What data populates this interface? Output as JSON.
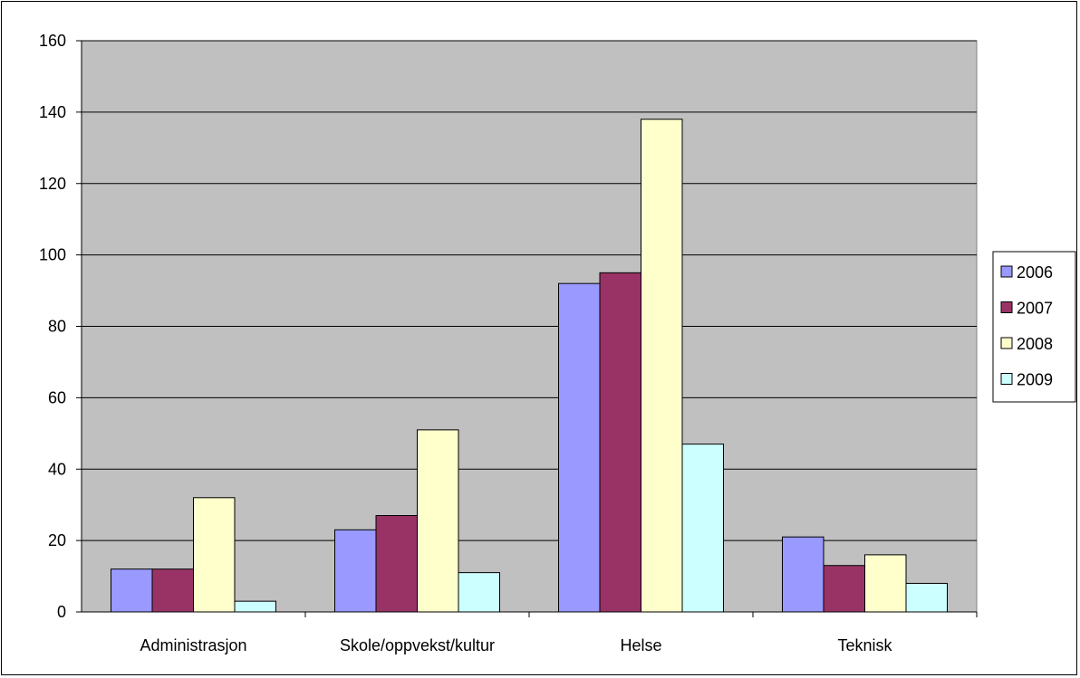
{
  "chart_data": {
    "type": "bar",
    "title": "",
    "xlabel": "",
    "ylabel": "",
    "categories": [
      "Administrasjon",
      "Skole/oppvekst/kultur",
      "Helse",
      "Teknisk"
    ],
    "series": [
      {
        "name": "2006",
        "values": [
          12,
          23,
          92,
          21
        ],
        "color": "#9999ff"
      },
      {
        "name": "2007",
        "values": [
          12,
          27,
          95,
          13
        ],
        "color": "#993366"
      },
      {
        "name": "2008",
        "values": [
          32,
          51,
          138,
          16
        ],
        "color": "#ffffcc"
      },
      {
        "name": "2009",
        "values": [
          3,
          11,
          47,
          8
        ],
        "color": "#ccffff"
      }
    ],
    "ylim": [
      0,
      160
    ],
    "yticks": [
      0,
      20,
      40,
      60,
      80,
      100,
      120,
      140,
      160
    ],
    "grid": true,
    "plot_background": "#c0c0c0",
    "legend_position": "right"
  }
}
